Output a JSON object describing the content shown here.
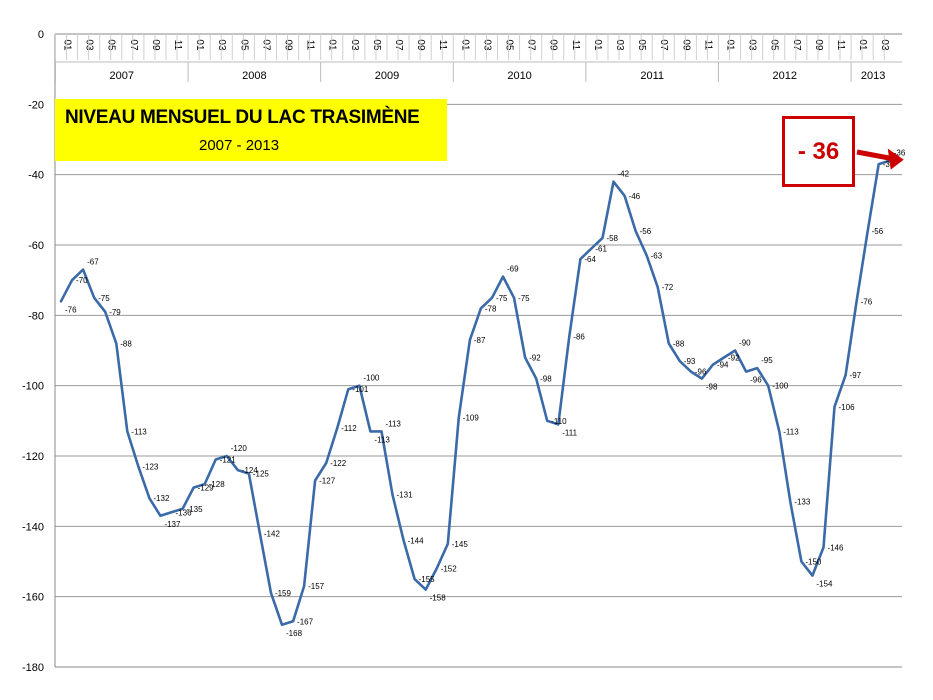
{
  "chart_data": {
    "type": "line",
    "title": "NIVEAU MENSUEL DU LAC TRASIMÈNE",
    "subtitle": "2007 - 2013",
    "xlabel": "",
    "ylabel": "",
    "ylim": [
      -180,
      0
    ],
    "y_ticks": [
      "0",
      "-20",
      "-40",
      "-60",
      "-80",
      "-100",
      "-120",
      "-140",
      "-160",
      "-180"
    ],
    "month_ticks": [
      "01",
      "03",
      "05",
      "07",
      "09",
      "11"
    ],
    "years": [
      "2007",
      "2008",
      "2009",
      "2010",
      "2011",
      "2012",
      "2013"
    ],
    "grid": true,
    "legend": "none",
    "line_color": "#3a6aa8",
    "callout": {
      "text": "- 36",
      "color": "#cc0000"
    },
    "x": [
      "2007-01",
      "2007-02",
      "2007-03",
      "2007-04",
      "2007-05",
      "2007-06",
      "2007-07",
      "2007-08",
      "2007-09",
      "2007-10",
      "2007-11",
      "2007-12",
      "2008-01",
      "2008-02",
      "2008-03",
      "2008-04",
      "2008-05",
      "2008-06",
      "2008-07",
      "2008-08",
      "2008-09",
      "2008-10",
      "2008-11",
      "2008-12",
      "2009-01",
      "2009-02",
      "2009-03",
      "2009-04",
      "2009-05",
      "2009-06",
      "2009-07",
      "2009-08",
      "2009-09",
      "2009-10",
      "2009-11",
      "2009-12",
      "2010-01",
      "2010-02",
      "2010-03",
      "2010-04",
      "2010-05",
      "2010-06",
      "2010-07",
      "2010-08",
      "2010-09",
      "2010-10",
      "2010-11",
      "2010-12",
      "2011-01",
      "2011-02",
      "2011-03",
      "2011-04",
      "2011-05",
      "2011-06",
      "2011-07",
      "2011-08",
      "2011-09",
      "2011-10",
      "2011-11",
      "2011-12",
      "2012-01",
      "2012-02",
      "2012-03",
      "2012-04",
      "2012-05",
      "2012-06",
      "2012-07",
      "2012-08",
      "2012-09",
      "2012-10",
      "2012-11",
      "2012-12",
      "2013-01",
      "2013-02",
      "2013-03",
      "2013-04"
    ],
    "values": [
      -76,
      -70,
      -67,
      -75,
      -79,
      -88,
      -113,
      -123,
      -132,
      -137,
      -136,
      -135,
      -129,
      -128,
      -121,
      -120,
      -124,
      -125,
      -142,
      -159,
      -168,
      -167,
      -157,
      -127,
      -122,
      -112,
      -101,
      -100,
      -113,
      -113,
      -131,
      -144,
      -155,
      -158,
      -152,
      -145,
      -109,
      -87,
      -78,
      -75,
      -69,
      -75,
      -92,
      -98,
      -110,
      -111,
      -86,
      -64,
      -61,
      -58,
      -42,
      -46,
      -56,
      -63,
      -72,
      -88,
      -93,
      -96,
      -98,
      -94,
      -92,
      -90,
      -96,
      -95,
      -100,
      -113,
      -133,
      -150,
      -154,
      -146,
      -106,
      -97,
      -76,
      -56,
      -37,
      -36
    ],
    "labels": [
      "-76",
      "-70",
      "-67",
      "-75",
      "-79",
      "-88",
      "-113",
      "-123",
      "-132",
      "-137",
      "-136",
      "-135",
      "-129",
      "-128",
      "-121",
      "-120",
      "-124",
      "-125",
      "-142",
      "-159",
      "-168",
      "-167",
      "-157",
      "-127",
      "-122",
      "-112",
      "-101",
      "-100",
      "-113",
      "-113",
      "-131",
      "-144",
      "-155",
      "-158",
      "-152",
      "-145",
      "-109",
      "-87",
      "-78",
      "-75",
      "-69",
      "-75",
      "-92",
      "-98",
      "-110",
      "-111",
      "-86",
      "-64",
      "-61",
      "-58",
      "-42",
      "-46",
      "-56",
      "-63",
      "-72",
      "-88",
      "-93",
      "-96",
      "-98",
      "-94",
      "-92",
      "-90",
      "-96",
      "-95",
      "-100",
      "-113",
      "-133",
      "-150",
      "-154",
      "-146",
      "-106",
      "-97",
      "-76",
      "-56",
      "-37",
      "-36"
    ]
  }
}
